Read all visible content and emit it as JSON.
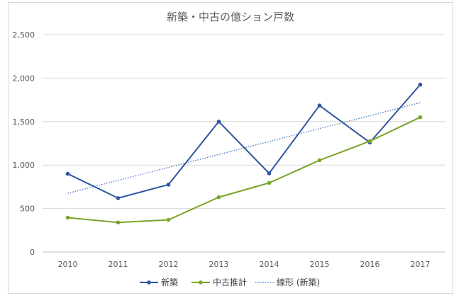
{
  "chart_data": {
    "type": "line",
    "title": "新築・中古の億ション戸数",
    "categories": [
      "2010",
      "2011",
      "2012",
      "2013",
      "2014",
      "2015",
      "2016",
      "2017"
    ],
    "ylim": [
      0,
      2500
    ],
    "y_ticks": [
      "0",
      "500",
      "1,000",
      "1,500",
      "2,000",
      "2,500"
    ],
    "grid": true,
    "legend_position": "bottom",
    "series": [
      {
        "name": "新築",
        "values": [
          900,
          620,
          775,
          1500,
          905,
          1685,
          1260,
          1925
        ],
        "color": "#2e56a0",
        "style": "solid-markers"
      },
      {
        "name": "中古推計",
        "values": [
          395,
          340,
          370,
          630,
          795,
          1055,
          1275,
          1550
        ],
        "color": "#7ba428",
        "style": "solid-markers"
      }
    ],
    "trendline": {
      "name": "線形 (新築)",
      "of_series": "新築",
      "type": "linear",
      "color": "#4472c4",
      "style": "dotted"
    }
  }
}
